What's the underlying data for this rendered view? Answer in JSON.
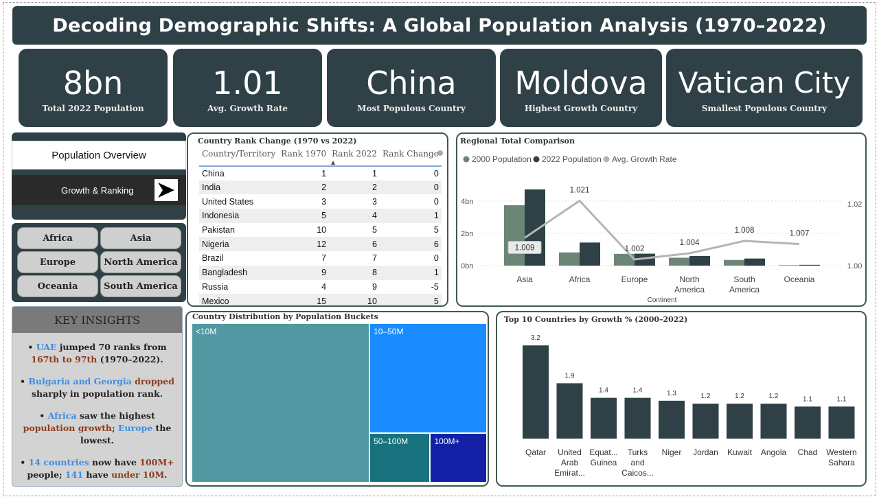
{
  "title": "Decoding Demographic Shifts: A Global Population Analysis (1970–2022)",
  "kpis": [
    {
      "value": "8bn",
      "label": "Total 2022 Population"
    },
    {
      "value": "1.01",
      "label": "Avg. Growth Rate"
    },
    {
      "value": "China",
      "label": "Most Populous Country"
    },
    {
      "value": "Moldova",
      "label": "Highest Growth Country"
    },
    {
      "value": "Vatican City",
      "label": "Smallest Populous Country"
    }
  ],
  "nav": {
    "overview": "Population Overview",
    "growth": "Growth & Ranking"
  },
  "regions": [
    "Africa",
    "Asia",
    "Europe",
    "North America",
    "Oceania",
    "South America"
  ],
  "insights": {
    "title": "KEY INSIGHTS",
    "items": [
      {
        "parts": [
          "• ",
          "UAE",
          " jumped 70 ranks from ",
          "167th to 97th",
          " (1970–2022)."
        ]
      },
      {
        "parts": [
          "• ",
          "Bulgaria and Georgia",
          " ",
          "dropped",
          " sharply in population rank."
        ]
      },
      {
        "parts": [
          "• ",
          "Africa",
          " saw the highest ",
          "population growth",
          "; ",
          "Europe",
          " the lowest."
        ]
      },
      {
        "parts": [
          "• ",
          "14 countries",
          " now have ",
          "100M+",
          " people; ",
          "141",
          " have ",
          "under 10M",
          "."
        ]
      }
    ]
  },
  "rank_table": {
    "title": "Country Rank Change (1970 vs 2022)",
    "columns": [
      "Country/Territory",
      "Rank 1970",
      "Rank 2022",
      "Rank Change"
    ],
    "rows": [
      [
        "China",
        "1",
        "1",
        "0"
      ],
      [
        "India",
        "2",
        "2",
        "0"
      ],
      [
        "United States",
        "3",
        "3",
        "0"
      ],
      [
        "Indonesia",
        "5",
        "4",
        "1"
      ],
      [
        "Pakistan",
        "10",
        "5",
        "5"
      ],
      [
        "Nigeria",
        "12",
        "6",
        "6"
      ],
      [
        "Brazil",
        "7",
        "7",
        "0"
      ],
      [
        "Bangladesh",
        "9",
        "8",
        "1"
      ],
      [
        "Russia",
        "4",
        "9",
        "-5"
      ],
      [
        "Mexico",
        "15",
        "10",
        "5"
      ]
    ]
  },
  "regional": {
    "title": "Regional Total Comparison",
    "legend": [
      "2000 Population",
      "2022 Population",
      "Avg. Growth Rate"
    ],
    "colors": {
      "pop2000": "#6b8676",
      "pop2022": "#2f4146",
      "growth": "#b5b5b5"
    },
    "continents": [
      "Asia",
      "Africa",
      "Europe",
      "North America",
      "South America",
      "Oceania"
    ],
    "continent_label": "Continent",
    "y_left_ticks": [
      "0bn",
      "2bn",
      "4bn"
    ],
    "y_right_ticks": [
      "1.00",
      "1.02"
    ],
    "growth_labels": [
      "1.009",
      "1.021",
      "1.002",
      "1.004",
      "1.008",
      "1.007"
    ]
  },
  "treemap": {
    "title": "Country Distribution by Population Buckets",
    "buckets": [
      "<10M",
      "10–50M",
      "50–100M",
      "100M+"
    ]
  },
  "chart_data": [
    {
      "type": "bar",
      "title": "Regional Total Comparison",
      "categories": [
        "Asia",
        "Africa",
        "Europe",
        "North America",
        "South America",
        "Oceania"
      ],
      "xlabel": "Continent",
      "ylim": [
        0,
        5
      ],
      "y2lim": [
        0.997,
        1.025
      ],
      "series": [
        {
          "name": "2000 Population",
          "values": [
            3.74,
            0.82,
            0.73,
            0.49,
            0.35,
            0.03
          ]
        },
        {
          "name": "2022 Population",
          "values": [
            4.72,
            1.43,
            0.74,
            0.6,
            0.44,
            0.05
          ]
        },
        {
          "name": "Avg. Growth Rate",
          "axis": "right",
          "values": [
            1.009,
            1.021,
            1.002,
            1.004,
            1.008,
            1.007
          ]
        }
      ],
      "legend": "top-left"
    },
    {
      "type": "bar",
      "title": "Top 10 Countries by Growth % (2000–2022)",
      "categories": [
        "Qatar",
        "United Arab Emirat...",
        "Equat... Guinea",
        "Turks and Caicos...",
        "Niger",
        "Jordan",
        "Kuwait",
        "Angola",
        "Chad",
        "Western Sahara"
      ],
      "values": [
        3.2,
        1.9,
        1.4,
        1.4,
        1.3,
        1.2,
        1.2,
        1.2,
        1.1,
        1.1
      ],
      "value_labels": [
        "3.2",
        "1.9",
        "1.4",
        "1.4",
        "1.3",
        "1.2",
        "1.2",
        "1.2",
        "1.1",
        "1.1"
      ],
      "ylim": [
        0,
        3.3
      ],
      "color": "#2f4146"
    },
    {
      "type": "treemap",
      "title": "Country Distribution by Population Buckets",
      "categories": [
        "<10M",
        "10–50M",
        "50–100M",
        "100M+"
      ],
      "values": [
        141,
        64,
        15,
        14
      ],
      "colors": [
        "#5198a3",
        "#1a8cff",
        "#17727e",
        "#1220a6"
      ]
    }
  ]
}
